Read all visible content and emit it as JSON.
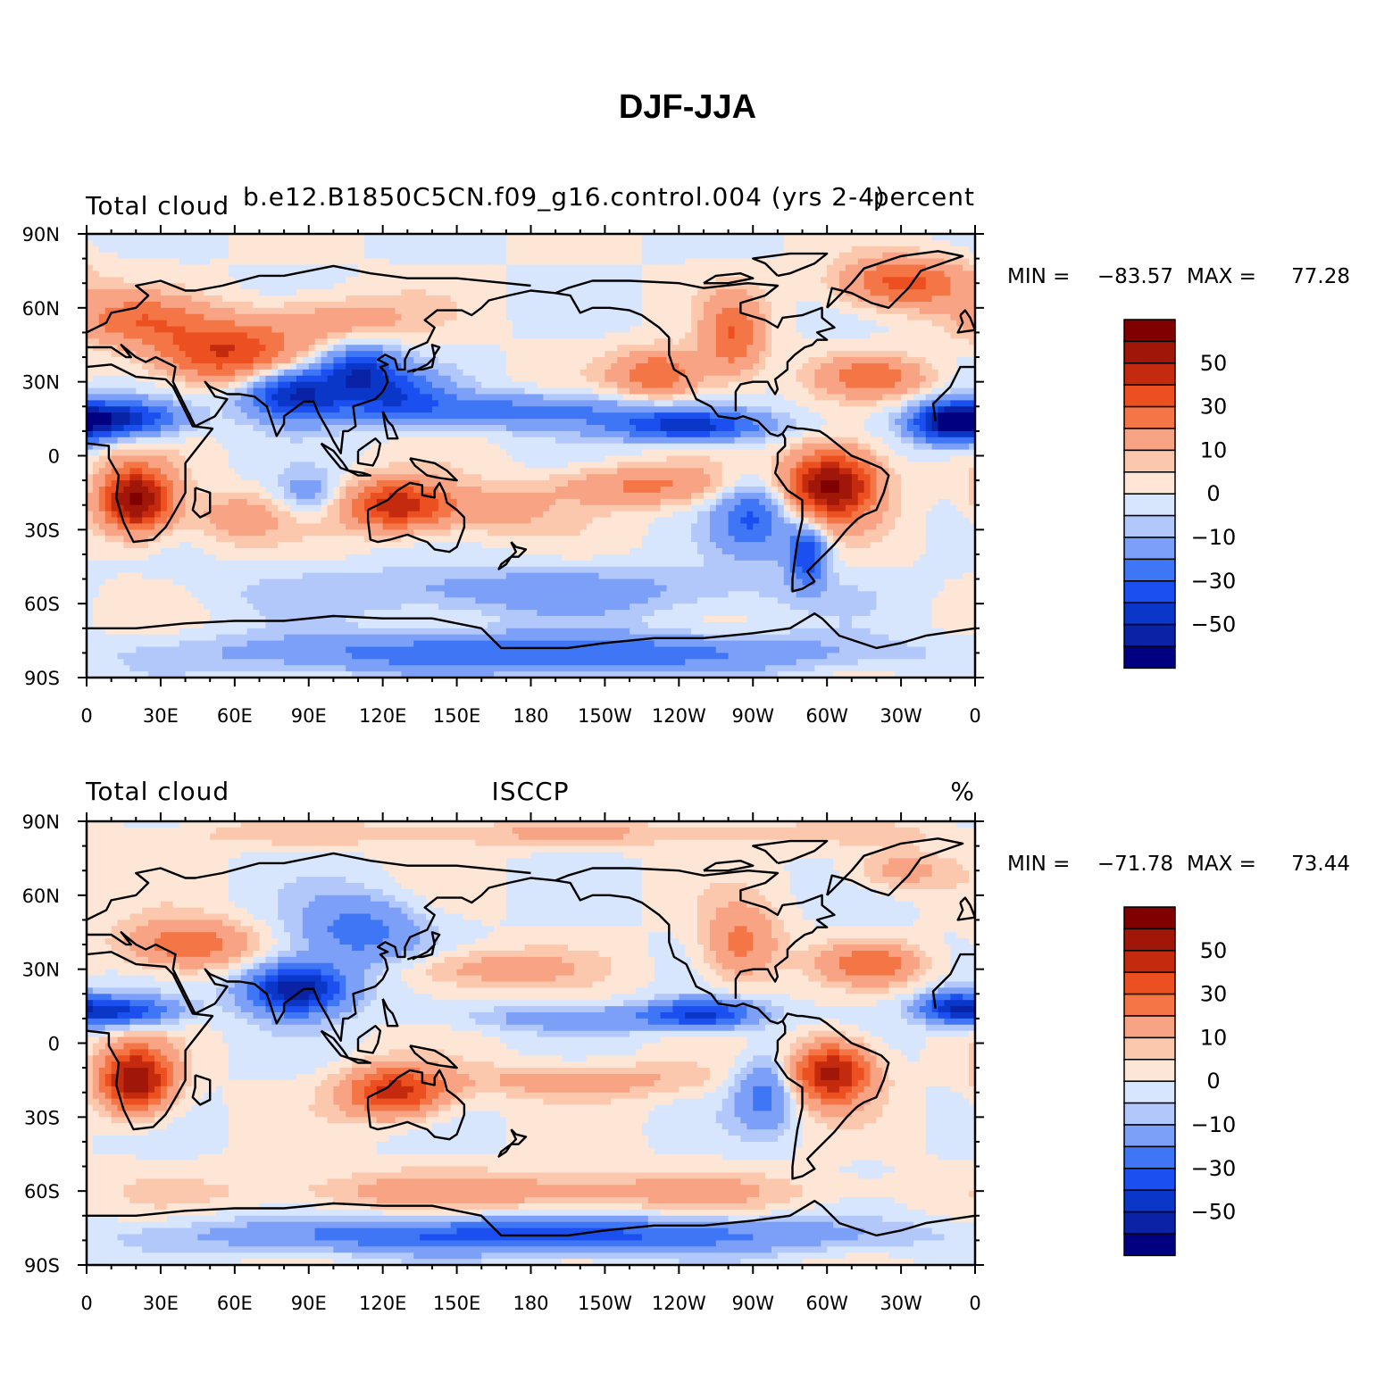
{
  "figure": {
    "title": "DJF-JJA"
  },
  "colors": {
    "levels": [
      "#000080",
      "#0a22a6",
      "#0b37c9",
      "#1b4ff0",
      "#3f76f5",
      "#7c9ff7",
      "#b2c7fa",
      "#d7e6fd",
      "#fde6d6",
      "#fbc8ae",
      "#f7a384",
      "#f47646",
      "#ed5020",
      "#c42a0d",
      "#a0170a",
      "#800000"
    ],
    "coast": "#000000",
    "frame": "#000000"
  },
  "panels": [
    {
      "id": "model",
      "left_title": "Total cloud",
      "center_title": "b.e12.B1850C5CN.f09_g16.control.004 (yrs 2-4)",
      "right_title": "percent",
      "min_label": "MIN =",
      "min_value": "−83.57",
      "max_label": "MAX =",
      "max_value": "77.28",
      "anomalies": [
        {
          "lon": 20,
          "lat": -18,
          "a": 14,
          "b": 13,
          "v": 65
        },
        {
          "lon": 55,
          "lat": 42,
          "a": 28,
          "b": 12,
          "v": 40
        },
        {
          "lon": 20,
          "lat": 55,
          "a": 25,
          "b": 10,
          "v": 25
        },
        {
          "lon": 100,
          "lat": 55,
          "a": 35,
          "b": 10,
          "v": 15
        },
        {
          "lon": 10,
          "lat": 15,
          "a": 25,
          "b": 7,
          "v": -55
        },
        {
          "lon": 85,
          "lat": 25,
          "a": 20,
          "b": 10,
          "v": -55
        },
        {
          "lon": 110,
          "lat": 35,
          "a": 15,
          "b": 10,
          "v": -40
        },
        {
          "lon": 125,
          "lat": 25,
          "a": 20,
          "b": 10,
          "v": -30
        },
        {
          "lon": 175,
          "lat": 18,
          "a": 60,
          "b": 7,
          "v": -25
        },
        {
          "lon": 245,
          "lat": 12,
          "a": 30,
          "b": 6,
          "v": -45
        },
        {
          "lon": 350,
          "lat": 13,
          "a": 15,
          "b": 8,
          "v": -50
        },
        {
          "lon": 125,
          "lat": -20,
          "a": 20,
          "b": 10,
          "v": 45
        },
        {
          "lon": 160,
          "lat": -22,
          "a": 30,
          "b": 10,
          "v": 15
        },
        {
          "lon": 225,
          "lat": -12,
          "a": 35,
          "b": 8,
          "v": 22
        },
        {
          "lon": 302,
          "lat": -12,
          "a": 18,
          "b": 14,
          "v": 65
        },
        {
          "lon": 292,
          "lat": -40,
          "a": 8,
          "b": 12,
          "v": -40
        },
        {
          "lon": 270,
          "lat": -25,
          "a": 15,
          "b": 15,
          "v": -30
        },
        {
          "lon": 232,
          "lat": 33,
          "a": 18,
          "b": 10,
          "v": 30
        },
        {
          "lon": 262,
          "lat": 48,
          "a": 12,
          "b": 16,
          "v": 30
        },
        {
          "lon": 318,
          "lat": 32,
          "a": 22,
          "b": 8,
          "v": 25
        },
        {
          "lon": 330,
          "lat": 70,
          "a": 25,
          "b": 10,
          "v": 35
        },
        {
          "lon": 180,
          "lat": -55,
          "a": 100,
          "b": 10,
          "v": -15
        },
        {
          "lon": 180,
          "lat": -80,
          "a": 120,
          "b": 8,
          "v": -30
        },
        {
          "lon": 60,
          "lat": -25,
          "a": 20,
          "b": 10,
          "v": 15
        },
        {
          "lon": 90,
          "lat": -15,
          "a": 12,
          "b": 8,
          "v": -15
        }
      ]
    },
    {
      "id": "obs",
      "left_title": "Total cloud",
      "center_title": "ISCCP",
      "right_title": "%",
      "min_label": "MIN =",
      "min_value": "−71.78",
      "max_label": "MAX =",
      "max_value": "73.44",
      "anomalies": [
        {
          "lon": 20,
          "lat": -15,
          "a": 14,
          "b": 13,
          "v": 60
        },
        {
          "lon": 40,
          "lat": 40,
          "a": 25,
          "b": 10,
          "v": 30
        },
        {
          "lon": 10,
          "lat": 13,
          "a": 25,
          "b": 6,
          "v": -45
        },
        {
          "lon": 85,
          "lat": 22,
          "a": 20,
          "b": 10,
          "v": -60
        },
        {
          "lon": 110,
          "lat": 45,
          "a": 25,
          "b": 15,
          "v": -25
        },
        {
          "lon": 125,
          "lat": -20,
          "a": 20,
          "b": 10,
          "v": 45
        },
        {
          "lon": 160,
          "lat": 30,
          "a": 40,
          "b": 8,
          "v": 15
        },
        {
          "lon": 200,
          "lat": 10,
          "a": 50,
          "b": 5,
          "v": -15
        },
        {
          "lon": 250,
          "lat": 12,
          "a": 22,
          "b": 6,
          "v": -40
        },
        {
          "lon": 302,
          "lat": -12,
          "a": 16,
          "b": 12,
          "v": 55
        },
        {
          "lon": 275,
          "lat": -20,
          "a": 12,
          "b": 15,
          "v": -25
        },
        {
          "lon": 265,
          "lat": 40,
          "a": 15,
          "b": 15,
          "v": 25
        },
        {
          "lon": 318,
          "lat": 32,
          "a": 20,
          "b": 8,
          "v": 25
        },
        {
          "lon": 200,
          "lat": -15,
          "a": 50,
          "b": 7,
          "v": 15
        },
        {
          "lon": 180,
          "lat": -60,
          "a": 120,
          "b": 8,
          "v": 15
        },
        {
          "lon": 180,
          "lat": -78,
          "a": 120,
          "b": 7,
          "v": -35
        },
        {
          "lon": 330,
          "lat": 70,
          "a": 20,
          "b": 8,
          "v": 15
        },
        {
          "lon": 180,
          "lat": 85,
          "a": 180,
          "b": 5,
          "v": 10
        },
        {
          "lon": 350,
          "lat": 15,
          "a": 12,
          "b": 6,
          "v": -30
        }
      ]
    }
  ],
  "axes": {
    "lon_labels": [
      "0",
      "30E",
      "60E",
      "90E",
      "120E",
      "150E",
      "180",
      "150W",
      "120W",
      "90W",
      "60W",
      "30W",
      "0"
    ],
    "lat_labels": [
      "90N",
      "60N",
      "30N",
      "0",
      "30S",
      "60S",
      "90S"
    ]
  },
  "colorbar": {
    "labels": [
      "50",
      "30",
      "10",
      "0",
      "−10",
      "−30",
      "−50"
    ]
  }
}
